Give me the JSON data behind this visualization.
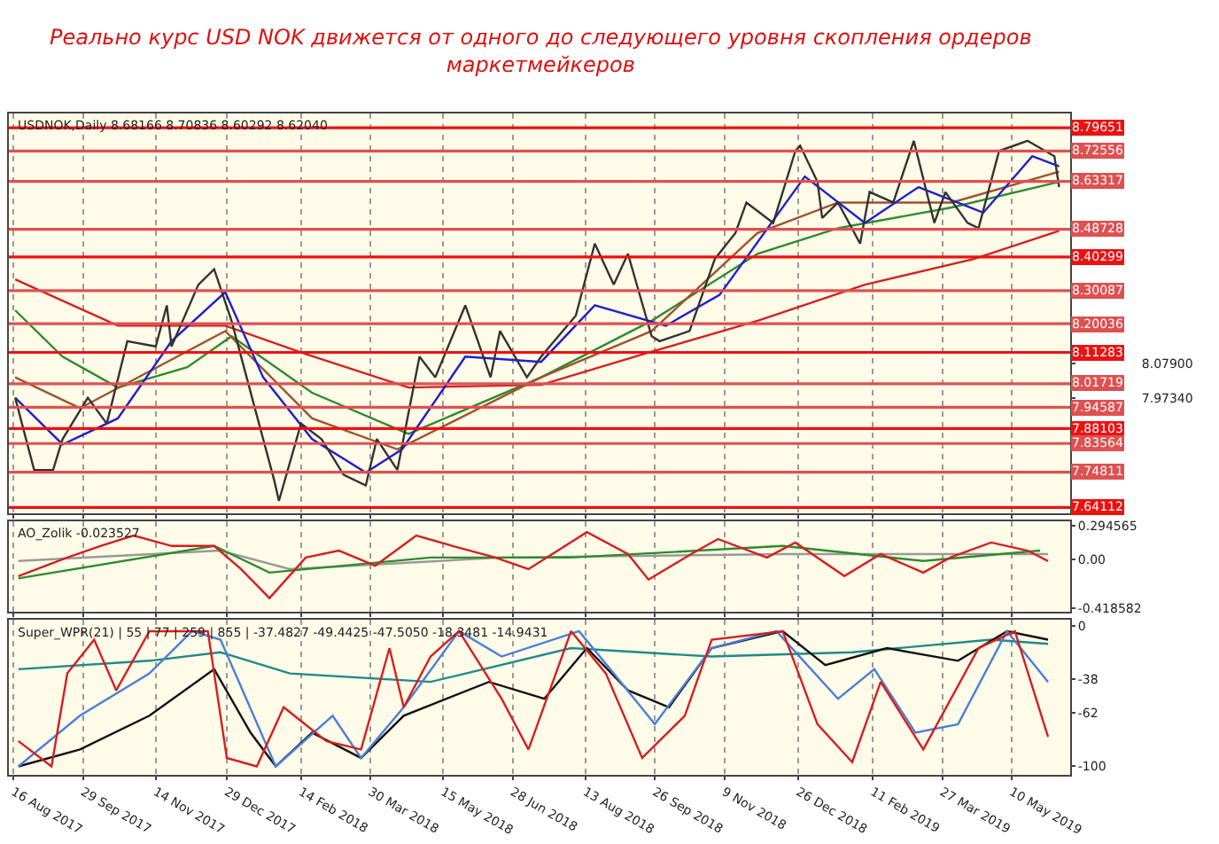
{
  "chart_data": [
    {
      "type": "line",
      "title": "Реально курс USD NOK движется от одного до следующего уровня скопления ордеров маркетмейкеров",
      "subtitle": "USDNOK,Daily 8.68166 8.70836 8.60292 8.62040",
      "xlim": [
        "2017-08-13",
        "2019-06-16"
      ],
      "ylim": [
        7.622,
        8.84
      ],
      "grid": "x",
      "tick_labels": "y",
      "xticks": [
        "2017-08-16",
        "2017-09-29",
        "2017-11-14",
        "2017-12-29",
        "2018-02-14",
        "2018-03-30",
        "2018-05-15",
        "2018-06-28",
        "2018-08-13",
        "2018-09-26",
        "2018-11-09",
        "2018-12-26",
        "2019-02-11",
        "2019-03-27",
        "2019-05-10"
      ],
      "yticks": [
        {
          "value": 8.079,
          "label": "8.07900"
        },
        {
          "value": 7.9734,
          "label": "7.97340"
        }
      ],
      "ref_lines": [
        {
          "axis": "y",
          "value": 8.79651,
          "label": "8.79651",
          "color": "#ee1111"
        },
        {
          "axis": "y",
          "value": 8.72556,
          "label": "8.72556",
          "color": "#e05050"
        },
        {
          "axis": "y",
          "value": 8.63317,
          "label": "8.63317",
          "color": "#e05050"
        },
        {
          "axis": "y",
          "value": 8.48728,
          "label": "8.48728",
          "color": "#e05050"
        },
        {
          "axis": "y",
          "value": 8.40299,
          "label": "8.40299",
          "color": "#ee1111"
        },
        {
          "axis": "y",
          "value": 8.30087,
          "label": "8.30087",
          "color": "#e05050"
        },
        {
          "axis": "y",
          "value": 8.20036,
          "label": "8.20036",
          "color": "#e05050"
        },
        {
          "axis": "y",
          "value": 8.11283,
          "label": "8.11283",
          "color": "#ee1111"
        },
        {
          "axis": "y",
          "value": 8.01719,
          "label": "8.01719",
          "color": "#e05050"
        },
        {
          "axis": "y",
          "value": 7.94587,
          "label": "7.94587",
          "color": "#e05050"
        },
        {
          "axis": "y",
          "value": 7.88103,
          "label": "7.88103",
          "color": "#ee1111"
        },
        {
          "axis": "y",
          "value": 7.83564,
          "label": "7.83564",
          "color": "#e05050"
        },
        {
          "axis": "y",
          "value": 7.74811,
          "label": "7.74811",
          "color": "#e05050"
        },
        {
          "axis": "y",
          "value": 7.64112,
          "label": "7.64112",
          "color": "#ee1111"
        }
      ],
      "series": [
        {
          "color": "#d42020",
          "x": [
            "2017-08-17",
            "2017-10-21",
            "2017-12-28",
            "2018-02-17",
            "2018-04-23",
            "2018-07-16",
            "2018-09-24",
            "2018-11-30",
            "2019-02-06",
            "2019-04-16",
            "2019-06-09"
          ],
          "values": [
            8.335,
            8.194,
            8.194,
            8.108,
            8.006,
            8.014,
            8.115,
            8.209,
            8.319,
            8.397,
            8.483
          ]
        },
        {
          "color": "#2e8b2e",
          "x": [
            "2017-08-17",
            "2017-09-16",
            "2017-10-21",
            "2017-12-04",
            "2018-01-01",
            "2018-02-21",
            "2018-04-23",
            "2018-07-16",
            "2018-09-24",
            "2018-11-30",
            "2019-01-20",
            "2019-04-02",
            "2019-06-09"
          ],
          "values": [
            8.241,
            8.1,
            8.006,
            8.068,
            8.162,
            7.99,
            7.865,
            8.037,
            8.209,
            8.413,
            8.491,
            8.554,
            8.632
          ]
        },
        {
          "color": "#a0522d",
          "x": [
            "2017-08-17",
            "2017-09-27",
            "2017-12-28",
            "2018-02-21",
            "2018-04-16",
            "2018-07-16",
            "2018-09-24",
            "2018-11-30",
            "2019-01-20",
            "2019-04-02",
            "2019-06-09"
          ],
          "values": [
            8.037,
            7.943,
            8.178,
            7.912,
            7.818,
            8.037,
            8.178,
            8.476,
            8.569,
            8.569,
            8.663
          ]
        },
        {
          "color": "#1f1fd0",
          "x": [
            "2017-08-17",
            "2017-09-16",
            "2017-10-21",
            "2017-11-24",
            "2017-12-28",
            "2018-01-21",
            "2018-02-21",
            "2018-03-27",
            "2018-04-19",
            "2018-05-29",
            "2018-07-16",
            "2018-08-19",
            "2018-10-03",
            "2018-11-06",
            "2018-12-30",
            "2019-02-06",
            "2019-03-12",
            "2019-04-22",
            "2019-05-23",
            "2019-06-09"
          ],
          "values": [
            7.975,
            7.833,
            7.912,
            8.147,
            8.296,
            8.037,
            7.849,
            7.747,
            7.818,
            8.1,
            8.084,
            8.256,
            8.194,
            8.288,
            8.648,
            8.507,
            8.616,
            8.538,
            8.71,
            8.679
          ]
        },
        {
          "color": "#333333",
          "x": [
            "2017-08-17",
            "2017-08-29",
            "2017-09-10",
            "2017-09-16",
            "2017-10-02",
            "2017-10-14",
            "2017-10-27",
            "2017-11-14",
            "2017-11-21",
            "2017-11-24",
            "2017-12-11",
            "2017-12-21",
            "2018-01-01",
            "2018-01-14",
            "2018-01-28",
            "2018-01-31",
            "2018-02-14",
            "2018-02-27",
            "2018-03-13",
            "2018-03-27",
            "2018-04-03",
            "2018-04-16",
            "2018-04-30",
            "2018-05-10",
            "2018-05-29",
            "2018-06-14",
            "2018-06-20",
            "2018-07-07",
            "2018-07-16",
            "2018-08-07",
            "2018-08-19",
            "2018-08-31",
            "2018-09-09",
            "2018-09-24",
            "2018-09-29",
            "2018-10-18",
            "2018-11-03",
            "2018-11-16",
            "2018-11-23",
            "2018-12-10",
            "2018-12-24",
            "2018-12-27",
            "2019-01-07",
            "2019-01-10",
            "2019-01-20",
            "2019-02-03",
            "2019-02-09",
            "2019-02-24",
            "2019-03-09",
            "2019-03-22",
            "2019-03-29",
            "2019-04-12",
            "2019-04-19",
            "2019-05-02",
            "2019-05-20",
            "2019-06-06",
            "2019-06-09"
          ],
          "values": [
            7.975,
            7.755,
            7.755,
            7.849,
            7.975,
            7.896,
            8.147,
            8.131,
            8.256,
            8.131,
            8.319,
            8.366,
            8.209,
            7.975,
            7.724,
            7.661,
            7.896,
            7.849,
            7.74,
            7.708,
            7.849,
            7.755,
            8.1,
            8.037,
            8.256,
            8.037,
            8.178,
            8.037,
            8.1,
            8.225,
            8.444,
            8.319,
            8.413,
            8.162,
            8.147,
            8.178,
            8.397,
            8.476,
            8.569,
            8.507,
            8.726,
            8.742,
            8.632,
            8.522,
            8.569,
            8.444,
            8.601,
            8.569,
            8.757,
            8.507,
            8.601,
            8.507,
            8.491,
            8.726,
            8.757,
            8.71,
            8.616
          ]
        }
      ]
    },
    {
      "type": "line",
      "title": "AO_Zolik -0.023527",
      "xlim": [
        "2017-08-13",
        "2019-06-16"
      ],
      "ylim": [
        -0.45,
        0.33
      ],
      "grid": "x",
      "tick_labels": "y",
      "xticks": [
        "2017-08-16",
        "2017-09-29",
        "2017-11-14",
        "2017-12-29",
        "2018-02-14",
        "2018-03-30",
        "2018-05-15",
        "2018-06-28",
        "2018-08-13",
        "2018-09-26",
        "2018-11-09",
        "2018-12-26",
        "2019-02-11",
        "2019-03-27",
        "2019-05-10"
      ],
      "yticks": [
        0.294565,
        {
          "value": 0,
          "label": "0.00"
        },
        -0.418582
      ],
      "series": [
        {
          "color": "#999999",
          "x": [
            "2017-08-19",
            "2017-12-25",
            "2018-02-07",
            "2018-06-21",
            "2018-12-16",
            "2019-06-02"
          ],
          "values": [
            -0.01,
            0.08,
            -0.08,
            0.02,
            0.05,
            0.05
          ]
        },
        {
          "color": "#2e8b2e",
          "x": [
            "2017-08-19",
            "2017-12-21",
            "2018-01-25",
            "2018-05-07",
            "2018-08-04",
            "2018-12-16",
            "2019-03-15",
            "2019-05-28"
          ],
          "values": [
            -0.16,
            0.12,
            -0.11,
            0.02,
            0.02,
            0.12,
            -0.01,
            0.08
          ]
        },
        {
          "color": "#d42020",
          "x": [
            "2017-08-19",
            "2017-09-19",
            "2017-10-10",
            "2017-10-31",
            "2017-11-24",
            "2017-12-21",
            "2018-01-07",
            "2018-01-25",
            "2018-02-17",
            "2018-03-10",
            "2018-04-02",
            "2018-04-28",
            "2018-05-21",
            "2018-06-17",
            "2018-07-08",
            "2018-08-14",
            "2018-09-09",
            "2018-09-22",
            "2018-10-19",
            "2018-11-05",
            "2018-12-06",
            "2018-12-24",
            "2019-01-24",
            "2019-02-16",
            "2019-03-15",
            "2019-04-01",
            "2019-04-27",
            "2019-05-20",
            "2019-06-02"
          ],
          "values": [
            -0.14,
            0.02,
            0.12,
            0.21,
            0.12,
            0.12,
            -0.08,
            -0.33,
            0.02,
            0.08,
            -0.05,
            0.21,
            0.12,
            0.02,
            -0.08,
            0.24,
            0.05,
            -0.17,
            0.05,
            0.18,
            0.02,
            0.15,
            -0.14,
            0.05,
            -0.11,
            0.02,
            0.15,
            0.08,
            -0.01
          ]
        }
      ]
    },
    {
      "type": "line",
      "title": "Super_WPR(21) | 55 | 77 | 259 | 855 | -37.4827 -49.4425 -47.5050 -18.3481 -14.9431",
      "xlim": [
        "2017-08-13",
        "2019-06-16"
      ],
      "ylim": [
        -106,
        4
      ],
      "grid": "x",
      "xticks": [
        {
          "value": "2017-08-16",
          "label": "16 Aug 2017"
        },
        {
          "value": "2017-09-29",
          "label": "29 Sep 2017"
        },
        {
          "value": "2017-11-14",
          "label": "14 Nov 2017"
        },
        {
          "value": "2017-12-29",
          "label": "29 Dec 2017"
        },
        {
          "value": "2018-02-14",
          "label": "14 Feb 2018"
        },
        {
          "value": "2018-03-30",
          "label": "30 Mar 2018"
        },
        {
          "value": "2018-05-15",
          "label": "15 May 2018"
        },
        {
          "value": "2018-06-28",
          "label": "28 Jun 2018"
        },
        {
          "value": "2018-08-13",
          "label": "13 Aug 2018"
        },
        {
          "value": "2018-09-26",
          "label": "26 Sep 2018"
        },
        {
          "value": "2018-11-09",
          "label": "9 Nov 2018"
        },
        {
          "value": "2018-12-26",
          "label": "26 Dec 2018"
        },
        {
          "value": "2019-02-11",
          "label": "11 Feb 2019"
        },
        {
          "value": "2019-03-27",
          "label": "27 Mar 2019"
        },
        {
          "value": "2019-05-10",
          "label": "10 May 2019"
        }
      ],
      "yticks": [
        0,
        -38,
        -62,
        -100
      ],
      "series": [
        {
          "color": "#1e8a8a",
          "x": [
            "2017-08-19",
            "2017-11-10",
            "2017-12-25",
            "2018-02-07",
            "2018-05-07",
            "2018-08-04",
            "2018-11-01",
            "2019-01-29",
            "2019-04-27",
            "2019-06-02"
          ],
          "values": [
            -31,
            -25,
            -19,
            -34,
            -40,
            -16,
            -22,
            -19,
            -10,
            -13
          ]
        },
        {
          "color": "#111111",
          "x": [
            "2017-08-19",
            "2017-09-27",
            "2017-11-10",
            "2017-12-21",
            "2018-01-13",
            "2018-01-29",
            "2018-02-21",
            "2018-03-24",
            "2018-04-20",
            "2018-06-13",
            "2018-07-18",
            "2018-08-14",
            "2018-09-09",
            "2018-10-05",
            "2018-11-01",
            "2018-12-16",
            "2019-01-12",
            "2019-02-20",
            "2019-04-06",
            "2019-05-07",
            "2019-06-02"
          ],
          "values": [
            -100,
            -88,
            -64,
            -31,
            -76,
            -100,
            -76,
            -94,
            -64,
            -40,
            -52,
            -16,
            -46,
            -58,
            -16,
            -4,
            -28,
            -16,
            -25,
            -4,
            -10
          ]
        },
        {
          "color": "#4a7fd8",
          "x": [
            "2017-08-19",
            "2017-09-27",
            "2017-11-10",
            "2017-12-07",
            "2017-12-25",
            "2018-01-29",
            "2018-03-06",
            "2018-03-24",
            "2018-04-20",
            "2018-05-25",
            "2018-06-21",
            "2018-08-09",
            "2018-08-31",
            "2018-09-26",
            "2018-11-01",
            "2018-12-12",
            "2019-01-20",
            "2019-02-12",
            "2019-03-10",
            "2019-04-06",
            "2019-05-07",
            "2019-06-02"
          ],
          "values": [
            -100,
            -64,
            -34,
            -4,
            -10,
            -100,
            -64,
            -94,
            -58,
            -4,
            -22,
            -4,
            -34,
            -70,
            -16,
            -4,
            -52,
            -31,
            -76,
            -70,
            -4,
            -40
          ]
        },
        {
          "color": "#d42020",
          "x": [
            "2017-08-19",
            "2017-09-09",
            "2017-09-19",
            "2017-10-06",
            "2017-10-20",
            "2017-11-10",
            "2017-12-17",
            "2017-12-29",
            "2018-01-17",
            "2018-02-03",
            "2018-03-02",
            "2018-03-24",
            "2018-04-11",
            "2018-04-20",
            "2018-05-07",
            "2018-05-25",
            "2018-06-21",
            "2018-07-08",
            "2018-08-04",
            "2018-08-26",
            "2018-09-18",
            "2018-10-15",
            "2018-11-01",
            "2018-12-16",
            "2019-01-07",
            "2019-01-29",
            "2019-02-16",
            "2019-03-15",
            "2019-04-19",
            "2019-05-12",
            "2019-06-02"
          ],
          "values": [
            -82,
            -100,
            -34,
            -10,
            -46,
            -4,
            -4,
            -94,
            -100,
            -58,
            -82,
            -88,
            -16,
            -58,
            -22,
            -4,
            -52,
            -88,
            -4,
            -34,
            -94,
            -64,
            -10,
            -4,
            -70,
            -97,
            -40,
            -88,
            -16,
            -4,
            -79
          ]
        }
      ]
    }
  ]
}
